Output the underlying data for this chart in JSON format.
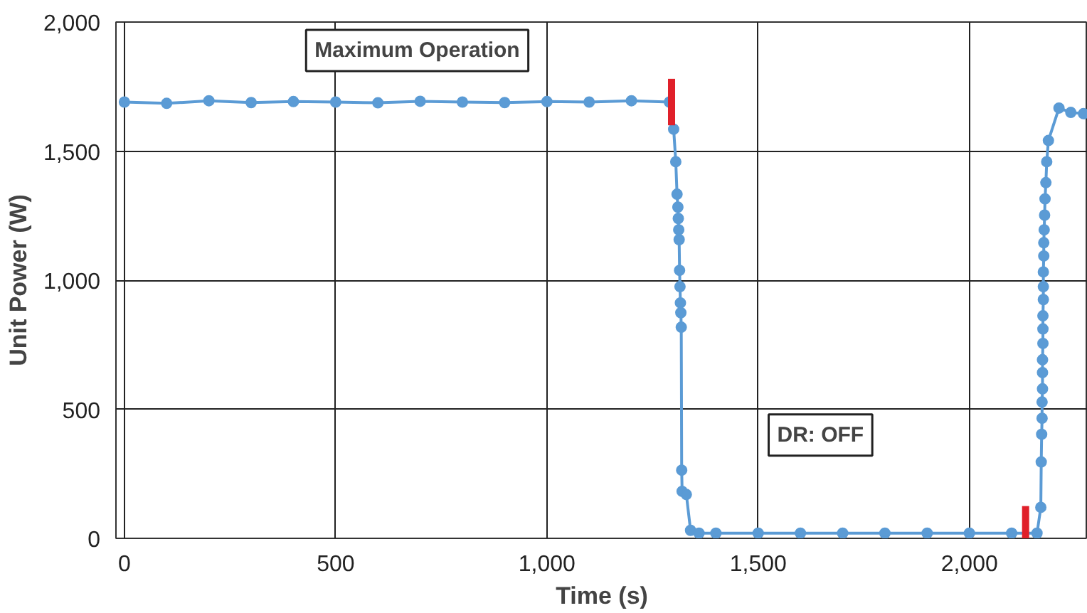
{
  "chart_data": {
    "type": "line",
    "xlabel": "Time (s)",
    "ylabel": "Unit Power (W)",
    "xlim": [
      -20,
      2280
    ],
    "ylim": [
      0,
      2000
    ],
    "xticks": [
      0,
      500,
      {
        "value": 1000,
        "label": "1,000"
      },
      {
        "value": 1500,
        "label": "1,500"
      },
      {
        "value": 2000,
        "label": "2,000"
      }
    ],
    "yticks": [
      0,
      500,
      {
        "value": 1000,
        "label": "1,000"
      },
      {
        "value": 1500,
        "label": "1,500"
      },
      {
        "value": 2000,
        "label": "2,000"
      }
    ],
    "grid": true,
    "marker": "circle",
    "line_style": "solid",
    "series": [
      {
        "color": "#5b9bd5",
        "x": [
          0,
          100,
          200,
          300,
          400,
          500,
          600,
          700,
          800,
          900,
          1000,
          1100,
          1200,
          1290,
          1300,
          1305,
          1308,
          1310,
          1311,
          1312,
          1313,
          1314,
          1315,
          1316,
          1317,
          1318,
          1319,
          1320,
          1330,
          1340,
          1360,
          1400,
          1500,
          1600,
          1700,
          1800,
          1900,
          2000,
          2100,
          2160,
          2169,
          2170,
          2171,
          2172,
          2172,
          2173,
          2173,
          2173,
          2174,
          2174,
          2174,
          2175,
          2175,
          2175,
          2176,
          2176,
          2177,
          2178,
          2179,
          2181,
          2183,
          2187,
          2212,
          2240,
          2270
        ],
        "values": [
          1690,
          1685,
          1695,
          1688,
          1692,
          1690,
          1687,
          1693,
          1690,
          1688,
          1692,
          1690,
          1695,
          1690,
          1585,
          1459,
          1333,
          1283,
          1239,
          1195,
          1157,
          1038,
          975,
          912,
          874,
          818,
          264,
          182,
          170,
          31,
          20,
          20,
          20,
          20,
          20,
          20,
          20,
          20,
          20,
          20,
          120,
          296,
          403,
          465,
          528,
          579,
          642,
          692,
          755,
          811,
          862,
          925,
          975,
          1032,
          1094,
          1145,
          1195,
          1252,
          1315,
          1378,
          1459,
          1541,
          1667,
          1650,
          1645
        ]
      },
      {
        "color": "#e0202a",
        "marker": "none",
        "x": [
          1295,
          1295
        ],
        "values": [
          1600,
          1780
        ]
      },
      {
        "color": "#e0202a",
        "marker": "none",
        "x": [
          2133,
          2133
        ],
        "values": [
          0,
          125
        ]
      }
    ],
    "annotations": [
      "Maximum Operation",
      "DR: OFF"
    ]
  }
}
